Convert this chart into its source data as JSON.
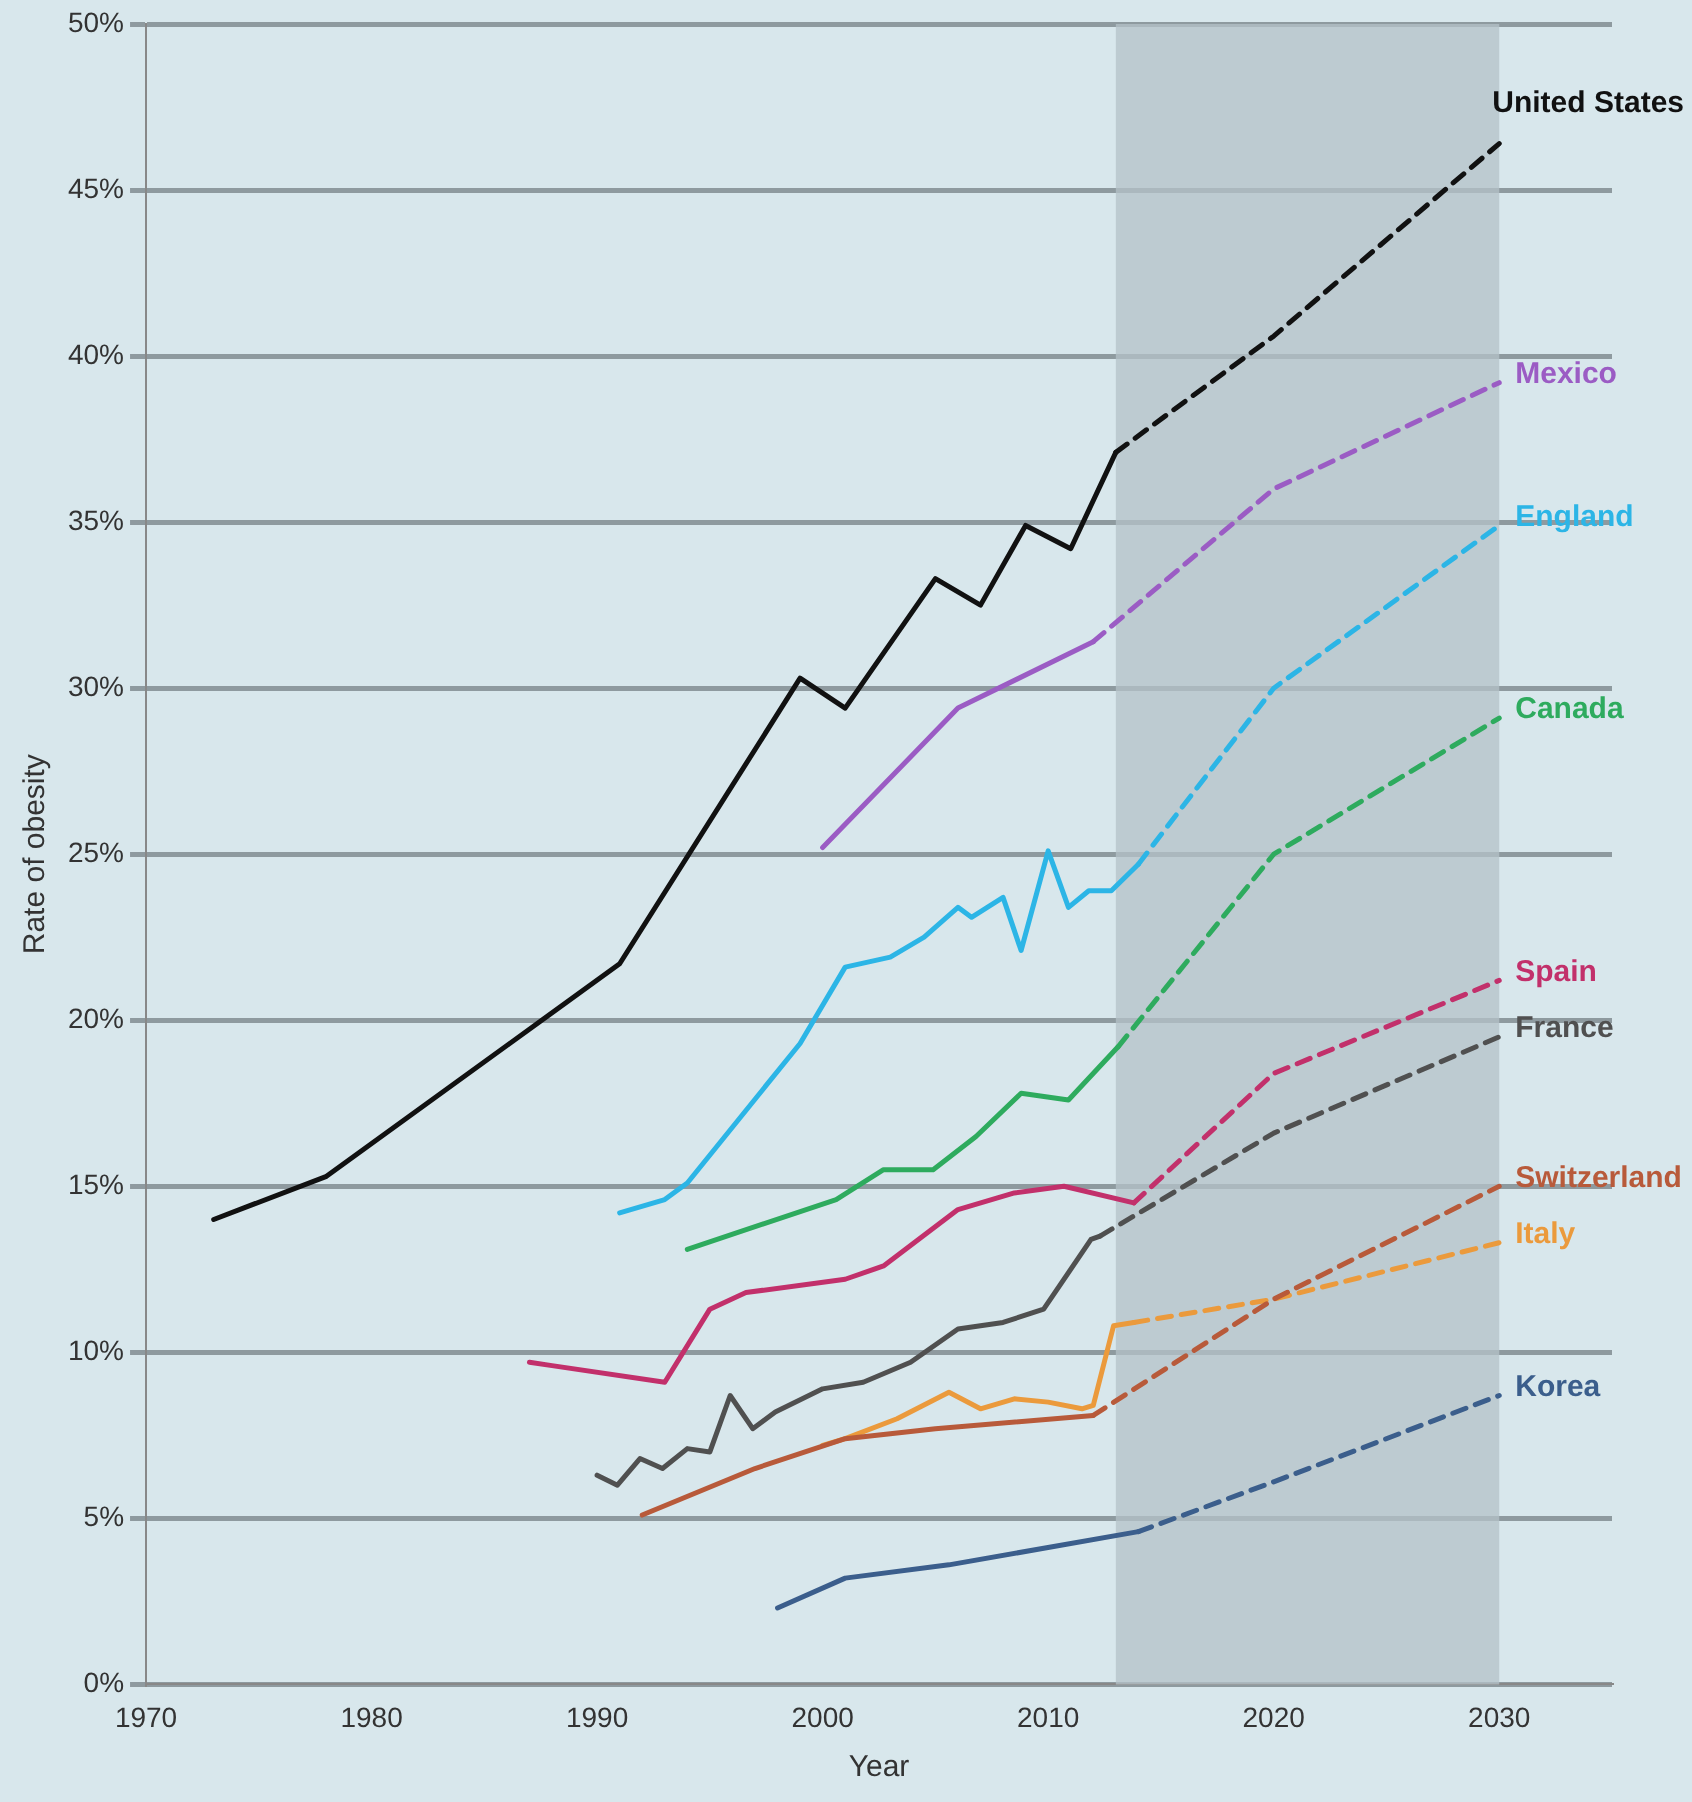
{
  "chart_data": {
    "type": "line",
    "xlabel": "Year",
    "ylabel": "Rate of obesity",
    "xlim": [
      1970,
      2035
    ],
    "xticks": [
      1970,
      1980,
      1990,
      2000,
      2010,
      2020,
      2030
    ],
    "ylim": [
      0,
      50
    ],
    "yticks": [
      {
        "value": 0,
        "label": "0%"
      },
      {
        "value": 5,
        "label": "5%"
      },
      {
        "value": 10,
        "label": "10%"
      },
      {
        "value": 15,
        "label": "15%"
      },
      {
        "value": 20,
        "label": "20%"
      },
      {
        "value": 25,
        "label": "25%"
      },
      {
        "value": 30,
        "label": "30%"
      },
      {
        "value": 35,
        "label": "35%"
      },
      {
        "value": 40,
        "label": "40%"
      },
      {
        "value": 45,
        "label": "45%"
      },
      {
        "value": 50,
        "label": "50%"
      }
    ],
    "grid": "y",
    "legend": false,
    "marker": "none",
    "bands": [
      {
        "axis": "x",
        "from": 2013,
        "to": 2030,
        "color": "#b4c2c8"
      }
    ],
    "series": [
      {
        "color": "#111111",
        "line_style": "solid",
        "x": [
          1973,
          1978,
          1991,
          1999,
          2001,
          2005,
          2007,
          2009,
          2011,
          2013
        ],
        "values": [
          14.0,
          15.3,
          21.7,
          30.3,
          29.4,
          33.3,
          32.5,
          34.9,
          34.2,
          37.1
        ]
      },
      {
        "name": "United States",
        "color": "#111111",
        "line_style": "dashed",
        "x": [
          2013,
          2020,
          2030
        ],
        "values": [
          37.1,
          40.6,
          46.4
        ]
      },
      {
        "color": "#9b5cc4",
        "line_style": "solid",
        "x": [
          2000,
          2006,
          2012
        ],
        "values": [
          25.2,
          29.4,
          31.4
        ]
      },
      {
        "name": "Mexico",
        "color": "#9b5cc4",
        "line_style": "dashed",
        "x": [
          2012,
          2020,
          2030
        ],
        "values": [
          31.4,
          36.0,
          39.2
        ]
      },
      {
        "color": "#2cb5e6",
        "line_style": "solid",
        "x": [
          1991,
          1993,
          1994,
          1999,
          2001,
          2003,
          2004.5,
          2006,
          2006.6,
          2008,
          2008.8,
          2010,
          2010.9,
          2011.8,
          2012.8,
          2014
        ],
        "values": [
          14.2,
          14.6,
          15.1,
          19.3,
          21.6,
          21.9,
          22.5,
          23.4,
          23.1,
          23.7,
          22.1,
          25.1,
          23.4,
          23.9,
          23.9,
          24.7
        ]
      },
      {
        "name": "England",
        "color": "#2cb5e6",
        "line_style": "dashed",
        "x": [
          2014,
          2020,
          2030
        ],
        "values": [
          24.7,
          30.0,
          34.9
        ]
      },
      {
        "color": "#2eab5e",
        "line_style": "solid",
        "x": [
          1994,
          2000.6,
          2002.7,
          2004.9,
          2006.8,
          2008.8,
          2010.9,
          2013.1
        ],
        "values": [
          13.1,
          14.6,
          15.5,
          15.5,
          16.5,
          17.8,
          17.6,
          19.2
        ]
      },
      {
        "name": "Canada",
        "color": "#2eab5e",
        "line_style": "dashed",
        "x": [
          2013.1,
          2020,
          2030
        ],
        "values": [
          19.2,
          25.0,
          29.1
        ]
      },
      {
        "color": "#c2306b",
        "line_style": "solid",
        "x": [
          1987,
          1988,
          1993,
          1995,
          1996.6,
          2001,
          2002.7,
          2006,
          2008.5,
          2010.7,
          2013.8
        ],
        "values": [
          9.7,
          9.6,
          9.1,
          11.3,
          11.8,
          12.2,
          12.6,
          14.3,
          14.8,
          15.0,
          14.5
        ]
      },
      {
        "name": "Spain",
        "color": "#c2306b",
        "line_style": "dashed",
        "x": [
          2013.8,
          2020,
          2030
        ],
        "values": [
          14.5,
          18.4,
          21.2
        ]
      },
      {
        "color": "#505050",
        "line_style": "solid",
        "x": [
          1990,
          1990.9,
          1991.9,
          1992.9,
          1994,
          1995,
          1995.9,
          1996.9,
          1997.9,
          2000,
          2001.8,
          2003.9,
          2006,
          2008,
          2009.8,
          2011.9,
          2012.3
        ],
        "values": [
          6.3,
          6.0,
          6.8,
          6.5,
          7.1,
          7.0,
          8.7,
          7.7,
          8.2,
          8.9,
          9.1,
          9.7,
          10.7,
          10.9,
          11.3,
          13.4,
          13.5
        ]
      },
      {
        "name": "France",
        "color": "#505050",
        "line_style": "dashed",
        "x": [
          2012.3,
          2020,
          2030
        ],
        "values": [
          13.5,
          16.6,
          19.5
        ]
      },
      {
        "color": "#b85a3a",
        "line_style": "solid",
        "x": [
          1992,
          1997,
          2001,
          2005,
          2012
        ],
        "values": [
          5.1,
          6.5,
          7.4,
          7.7,
          8.1
        ]
      },
      {
        "name": "Switzerland",
        "color": "#b85a3a",
        "line_style": "dashed",
        "x": [
          2012,
          2020,
          2030
        ],
        "values": [
          8.1,
          11.6,
          15.0
        ]
      },
      {
        "color": "#eb9a3c",
        "line_style": "solid",
        "x": [
          2000,
          2001,
          2003.3,
          2005.6,
          2007,
          2008.5,
          2010,
          2011.5,
          2012,
          2012.9,
          2013.8
        ],
        "values": [
          7.2,
          7.4,
          8.0,
          8.8,
          8.3,
          8.6,
          8.5,
          8.3,
          8.4,
          10.8,
          10.9
        ]
      },
      {
        "name": "Italy",
        "color": "#eb9a3c",
        "line_style": "dashed",
        "x": [
          2013.8,
          2020,
          2030
        ],
        "values": [
          10.9,
          11.6,
          13.3
        ]
      },
      {
        "color": "#3b5e8c",
        "line_style": "solid",
        "x": [
          1998,
          2001,
          2005.6,
          2014
        ],
        "values": [
          2.3,
          3.2,
          3.6,
          4.6
        ]
      },
      {
        "name": "Korea",
        "color": "#3b5e8c",
        "line_style": "dashed",
        "x": [
          2014,
          2020,
          2030
        ],
        "values": [
          4.6,
          6.1,
          8.7
        ]
      }
    ]
  }
}
